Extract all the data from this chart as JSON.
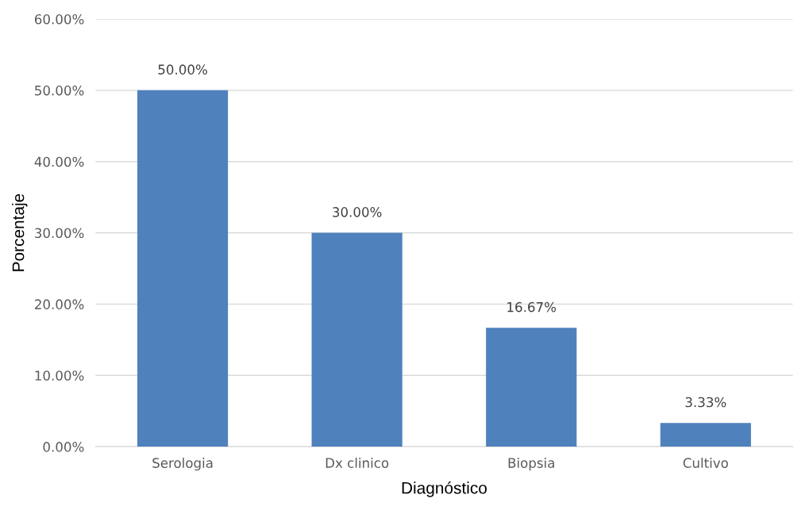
{
  "chart_data": {
    "type": "bar",
    "xlabel": "Diagnóstico",
    "ylabel": "Porcentaje",
    "categories": [
      "Serologia",
      "Dx clinico",
      "Biopsia",
      "Cultivo"
    ],
    "values": [
      50,
      30,
      16.67,
      3.33
    ],
    "color": "#4f81bd",
    "value_labels": [
      "50.00%",
      "30.00%",
      "16.67%",
      "3.33%"
    ],
    "ylim": [
      0,
      60
    ],
    "yticks": [
      {
        "value": 0,
        "label": "0.00%"
      },
      {
        "value": 10,
        "label": "10.00%"
      },
      {
        "value": 20,
        "label": "20.00%"
      },
      {
        "value": 30,
        "label": "30.00%"
      },
      {
        "value": 40,
        "label": "40.00%"
      },
      {
        "value": 50,
        "label": "50.00%"
      },
      {
        "value": 60,
        "label": "60.00%"
      }
    ],
    "grid": "y"
  }
}
